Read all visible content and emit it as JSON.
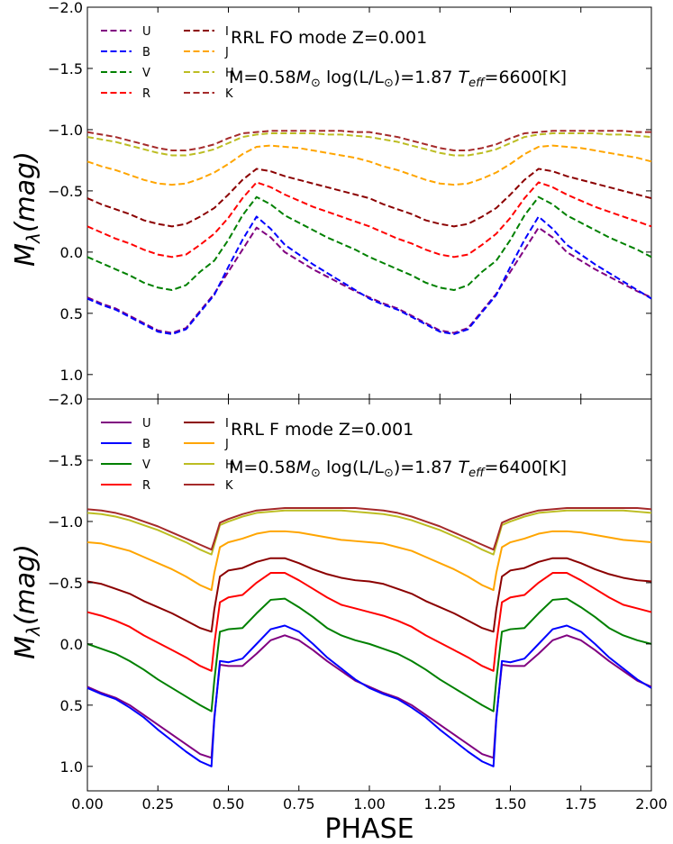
{
  "figure": {
    "xlabel": "PHASE",
    "ylabel": "M",
    "ylabel_sub": "λ",
    "ylabel_unit": "(mag)",
    "x_ticks": [
      "0.00",
      "0.25",
      "0.50",
      "0.75",
      "1.00",
      "1.25",
      "1.50",
      "1.75",
      "2.00"
    ],
    "y_ticks_top": [
      "−2.0",
      "−1.5",
      "−1.0",
      "−0.5",
      "0.0",
      "0.5",
      "1.0"
    ],
    "y_ticks_bottom": [
      "−2.0",
      "−1.5",
      "−1.0",
      "−0.5",
      "0.0",
      "0.5",
      "1.0"
    ]
  },
  "panels": {
    "top": {
      "annotation_line1": "RRL FO mode  Z=0.001",
      "annotation_line2_a": "M=0.58",
      "annotation_line2_b": "M",
      "annotation_line2_c": "⊙",
      "annotation_line2_d": " log(L/L",
      "annotation_line2_e": "⊙",
      "annotation_line2_f": ")=1.87  ",
      "annotation_line2_g": "T",
      "annotation_line2_h": "eff",
      "annotation_line2_i": "=6600[K]"
    },
    "bottom": {
      "annotation_line1": "RRL  F mode  Z=0.001",
      "annotation_line2_a": "M=0.58",
      "annotation_line2_b": "M",
      "annotation_line2_c": "⊙",
      "annotation_line2_d": " log(L/L",
      "annotation_line2_e": "⊙",
      "annotation_line2_f": ")=1.87  ",
      "annotation_line2_g": "T",
      "annotation_line2_h": "eff",
      "annotation_line2_i": "=6400[K]"
    }
  },
  "chart_data": [
    {
      "type": "line",
      "title": "",
      "xlabel": "PHASE",
      "ylabel": "Mλ(mag)",
      "xlim": [
        0,
        2
      ],
      "ylim": [
        1.2,
        -2.0
      ],
      "y_inverted": true,
      "line_style": "dashed",
      "legend_placement": "top-left",
      "x": [
        0.0,
        0.05,
        0.1,
        0.15,
        0.2,
        0.25,
        0.3,
        0.35,
        0.4,
        0.45,
        0.5,
        0.55,
        0.6,
        0.65,
        0.7,
        0.75,
        0.8,
        0.85,
        0.9,
        0.95,
        1.0
      ],
      "series": [
        {
          "name": "U",
          "color": "#800080",
          "values": [
            0.37,
            0.42,
            0.46,
            0.52,
            0.58,
            0.64,
            0.66,
            0.62,
            0.48,
            0.34,
            0.16,
            -0.02,
            -0.2,
            -0.12,
            0.0,
            0.07,
            0.14,
            0.2,
            0.26,
            0.32,
            0.37
          ]
        },
        {
          "name": "B",
          "color": "#0000ff",
          "values": [
            0.38,
            0.43,
            0.47,
            0.53,
            0.59,
            0.65,
            0.67,
            0.63,
            0.49,
            0.35,
            0.12,
            -0.1,
            -0.29,
            -0.19,
            -0.06,
            0.02,
            0.1,
            0.17,
            0.24,
            0.31,
            0.38
          ]
        },
        {
          "name": "V",
          "color": "#008000",
          "values": [
            0.04,
            0.09,
            0.14,
            0.19,
            0.25,
            0.29,
            0.31,
            0.27,
            0.16,
            0.07,
            -0.1,
            -0.3,
            -0.45,
            -0.39,
            -0.3,
            -0.24,
            -0.18,
            -0.12,
            -0.07,
            -0.02,
            0.04
          ]
        },
        {
          "name": "R",
          "color": "#ff0000",
          "values": [
            -0.21,
            -0.16,
            -0.11,
            -0.07,
            -0.02,
            0.02,
            0.04,
            0.02,
            -0.06,
            -0.15,
            -0.28,
            -0.44,
            -0.57,
            -0.53,
            -0.47,
            -0.42,
            -0.37,
            -0.33,
            -0.29,
            -0.25,
            -0.21
          ]
        },
        {
          "name": "I",
          "color": "#8b0000",
          "values": [
            -0.44,
            -0.39,
            -0.35,
            -0.31,
            -0.26,
            -0.23,
            -0.21,
            -0.23,
            -0.29,
            -0.36,
            -0.47,
            -0.59,
            -0.68,
            -0.66,
            -0.62,
            -0.59,
            -0.56,
            -0.53,
            -0.5,
            -0.47,
            -0.44
          ]
        },
        {
          "name": "J",
          "color": "#ffa500",
          "values": [
            -0.74,
            -0.7,
            -0.67,
            -0.63,
            -0.59,
            -0.56,
            -0.55,
            -0.56,
            -0.6,
            -0.65,
            -0.72,
            -0.8,
            -0.86,
            -0.87,
            -0.86,
            -0.85,
            -0.83,
            -0.81,
            -0.79,
            -0.77,
            -0.74
          ]
        },
        {
          "name": "H",
          "color": "#bcbd22",
          "values": [
            -0.94,
            -0.92,
            -0.9,
            -0.87,
            -0.84,
            -0.81,
            -0.79,
            -0.79,
            -0.81,
            -0.84,
            -0.89,
            -0.94,
            -0.96,
            -0.97,
            -0.97,
            -0.97,
            -0.97,
            -0.96,
            -0.96,
            -0.95,
            -0.94
          ]
        },
        {
          "name": "K",
          "color": "#a52a2a",
          "values": [
            -0.98,
            -0.96,
            -0.94,
            -0.91,
            -0.88,
            -0.85,
            -0.83,
            -0.83,
            -0.85,
            -0.88,
            -0.93,
            -0.97,
            -0.98,
            -0.99,
            -0.99,
            -0.99,
            -0.99,
            -0.99,
            -0.99,
            -0.98,
            -0.98
          ]
        }
      ],
      "period_repeat": true
    },
    {
      "type": "line",
      "title": "",
      "xlabel": "PHASE",
      "ylabel": "Mλ(mag)",
      "xlim": [
        0,
        2
      ],
      "ylim": [
        1.2,
        -2.0
      ],
      "y_inverted": true,
      "line_style": "solid",
      "legend_placement": "top-left",
      "x": [
        0.0,
        0.05,
        0.1,
        0.15,
        0.2,
        0.25,
        0.3,
        0.35,
        0.4,
        0.44,
        0.45,
        0.47,
        0.5,
        0.55,
        0.6,
        0.65,
        0.7,
        0.75,
        0.8,
        0.85,
        0.9,
        0.95,
        1.0
      ],
      "series": [
        {
          "name": "U",
          "color": "#800080",
          "values": [
            0.35,
            0.4,
            0.44,
            0.5,
            0.58,
            0.66,
            0.74,
            0.82,
            0.9,
            0.93,
            0.6,
            0.17,
            0.18,
            0.18,
            0.08,
            -0.03,
            -0.07,
            -0.03,
            0.05,
            0.14,
            0.22,
            0.3,
            0.35
          ]
        },
        {
          "name": "B",
          "color": "#0000ff",
          "values": [
            0.36,
            0.41,
            0.45,
            0.52,
            0.6,
            0.7,
            0.79,
            0.88,
            0.96,
            1.0,
            0.62,
            0.14,
            0.15,
            0.12,
            0.0,
            -0.12,
            -0.15,
            -0.1,
            0.0,
            0.11,
            0.2,
            0.29,
            0.36
          ]
        },
        {
          "name": "V",
          "color": "#008000",
          "values": [
            0.0,
            0.04,
            0.08,
            0.14,
            0.21,
            0.29,
            0.36,
            0.43,
            0.5,
            0.55,
            0.3,
            -0.1,
            -0.12,
            -0.13,
            -0.25,
            -0.36,
            -0.37,
            -0.3,
            -0.22,
            -0.13,
            -0.07,
            -0.03,
            0.0
          ]
        },
        {
          "name": "R",
          "color": "#ff0000",
          "values": [
            -0.26,
            -0.23,
            -0.19,
            -0.14,
            -0.07,
            -0.01,
            0.05,
            0.11,
            0.18,
            0.22,
            0.0,
            -0.34,
            -0.38,
            -0.4,
            -0.5,
            -0.58,
            -0.58,
            -0.52,
            -0.45,
            -0.38,
            -0.32,
            -0.29,
            -0.26
          ]
        },
        {
          "name": "I",
          "color": "#8b0000",
          "values": [
            -0.51,
            -0.49,
            -0.45,
            -0.41,
            -0.35,
            -0.3,
            -0.25,
            -0.19,
            -0.13,
            -0.1,
            -0.28,
            -0.55,
            -0.6,
            -0.62,
            -0.67,
            -0.7,
            -0.7,
            -0.66,
            -0.61,
            -0.57,
            -0.54,
            -0.52,
            -0.51
          ]
        },
        {
          "name": "J",
          "color": "#ffa500",
          "values": [
            -0.83,
            -0.82,
            -0.79,
            -0.76,
            -0.71,
            -0.66,
            -0.61,
            -0.55,
            -0.48,
            -0.44,
            -0.58,
            -0.79,
            -0.83,
            -0.86,
            -0.9,
            -0.92,
            -0.92,
            -0.91,
            -0.89,
            -0.87,
            -0.85,
            -0.84,
            -0.83
          ]
        },
        {
          "name": "H",
          "color": "#bcbd22",
          "values": [
            -1.07,
            -1.06,
            -1.04,
            -1.01,
            -0.97,
            -0.93,
            -0.88,
            -0.83,
            -0.77,
            -0.73,
            -0.81,
            -0.97,
            -1.0,
            -1.04,
            -1.07,
            -1.08,
            -1.09,
            -1.09,
            -1.09,
            -1.09,
            -1.09,
            -1.08,
            -1.07
          ]
        },
        {
          "name": "K",
          "color": "#a52a2a",
          "values": [
            -1.1,
            -1.09,
            -1.07,
            -1.04,
            -1.0,
            -0.96,
            -0.91,
            -0.86,
            -0.81,
            -0.77,
            -0.84,
            -0.99,
            -1.02,
            -1.06,
            -1.09,
            -1.1,
            -1.11,
            -1.11,
            -1.11,
            -1.11,
            -1.11,
            -1.11,
            -1.1
          ]
        }
      ],
      "period_repeat": true
    }
  ]
}
